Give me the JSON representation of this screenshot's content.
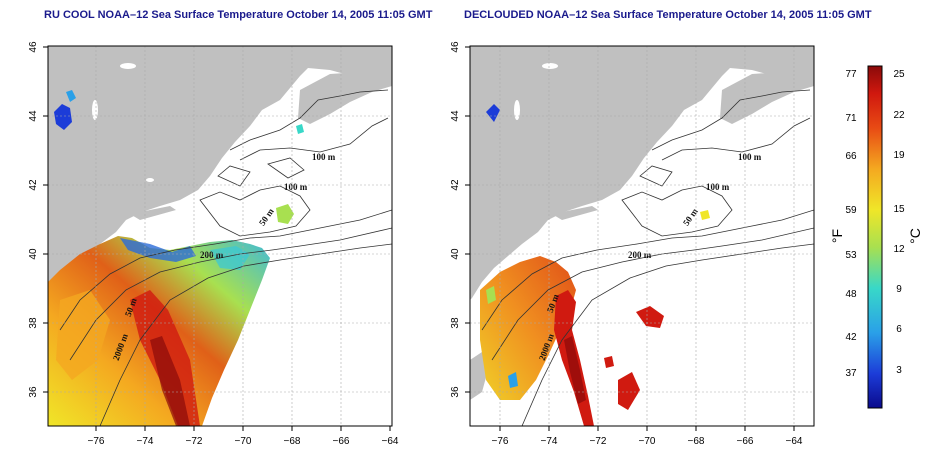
{
  "panels": [
    {
      "title": "RU COOL NOAA–12 Sea Surface Temperature October 14, 2005 11:05 GMT",
      "contour_labels": [
        "100 m",
        "100 m",
        "50 m",
        "200 m",
        "50 m",
        "2000 m"
      ]
    },
    {
      "title": "DECLOUDED NOAA–12 Sea Surface Temperature October 14, 2005 11:05 GMT",
      "contour_labels": [
        "100 m",
        "100 m",
        "50 m",
        "200 m",
        "50 m",
        "2000 m"
      ]
    }
  ],
  "axes": {
    "lon_ticks": [
      "−76",
      "−74",
      "−72",
      "−70",
      "−68",
      "−66",
      "−64"
    ],
    "lat_ticks": [
      "46",
      "44",
      "42",
      "40",
      "38",
      "36"
    ]
  },
  "colorbar": {
    "f_label": "°F",
    "c_label": "°C",
    "f_ticks": [
      "77",
      "71",
      "66",
      "59",
      "53",
      "48",
      "42",
      "37"
    ],
    "c_ticks": [
      "25",
      "22",
      "19",
      "15",
      "12",
      "9",
      "6",
      "3"
    ]
  },
  "colors": {
    "land": "#c0c0c0",
    "title": "#1a1a8c",
    "contour": "#333333",
    "grid": "#aaaaaa"
  }
}
